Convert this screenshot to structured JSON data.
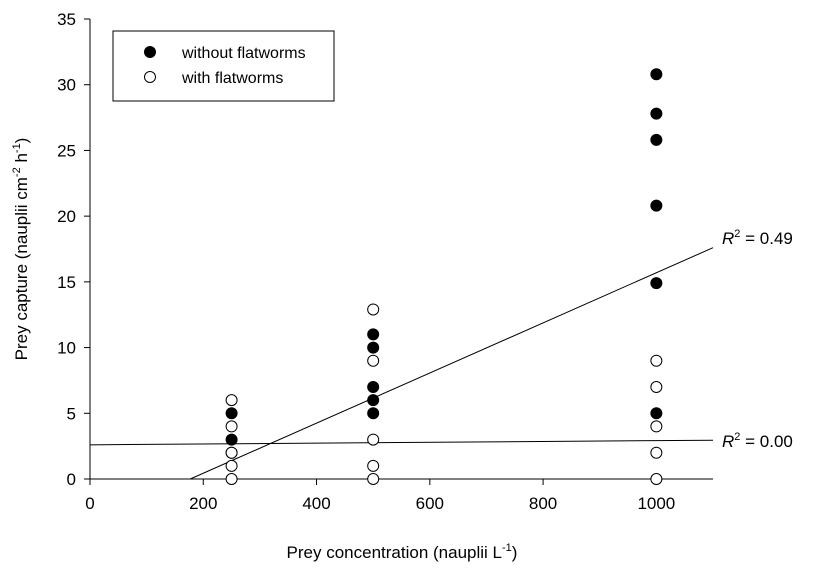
{
  "chart_data": {
    "type": "scatter",
    "xlabel": "Prey concentration (nauplii L",
    "xlabel_sup": "-1",
    "xlabel_end": ")",
    "ylabel": "Prey capture (nauplii cm",
    "ylabel_sup1": "-2",
    "ylabel_mid": " h",
    "ylabel_sup2": "-1",
    "ylabel_end": ")",
    "xlim": [
      0,
      1100
    ],
    "ylim": [
      0,
      35
    ],
    "xticks": [
      0,
      200,
      400,
      600,
      800,
      1000
    ],
    "yticks": [
      0,
      5,
      10,
      15,
      20,
      25,
      30,
      35
    ],
    "legend_position": "top-left",
    "series": [
      {
        "name": "without flatworms",
        "marker": "filled-circle",
        "color": "#000000",
        "points": [
          [
            250,
            5
          ],
          [
            250,
            3
          ],
          [
            250,
            2
          ],
          [
            500,
            11
          ],
          [
            500,
            10
          ],
          [
            500,
            7
          ],
          [
            500,
            6
          ],
          [
            500,
            5
          ],
          [
            1000,
            30.8
          ],
          [
            1000,
            27.8
          ],
          [
            1000,
            25.8
          ],
          [
            1000,
            20.8
          ],
          [
            1000,
            14.9
          ],
          [
            1000,
            5
          ]
        ],
        "fit": {
          "x": [
            177,
            1100
          ],
          "y": [
            0,
            17.6
          ]
        },
        "r2_prefix": "R",
        "r2_sup": "2",
        "r2_value": " = 0.49"
      },
      {
        "name": "with flatworms",
        "marker": "open-circle",
        "color": "#000000",
        "points": [
          [
            250,
            6
          ],
          [
            250,
            4
          ],
          [
            250,
            2
          ],
          [
            250,
            1
          ],
          [
            250,
            0
          ],
          [
            500,
            12.9
          ],
          [
            500,
            9
          ],
          [
            500,
            3
          ],
          [
            500,
            1
          ],
          [
            500,
            0
          ],
          [
            1000,
            9
          ],
          [
            1000,
            7
          ],
          [
            1000,
            4
          ],
          [
            1000,
            2
          ],
          [
            1000,
            0
          ]
        ],
        "fit": {
          "x": [
            0,
            1100
          ],
          "y": [
            2.6,
            2.95
          ]
        },
        "r2_prefix": "R",
        "r2_sup": "2",
        "r2_value": " = 0.00"
      }
    ]
  }
}
